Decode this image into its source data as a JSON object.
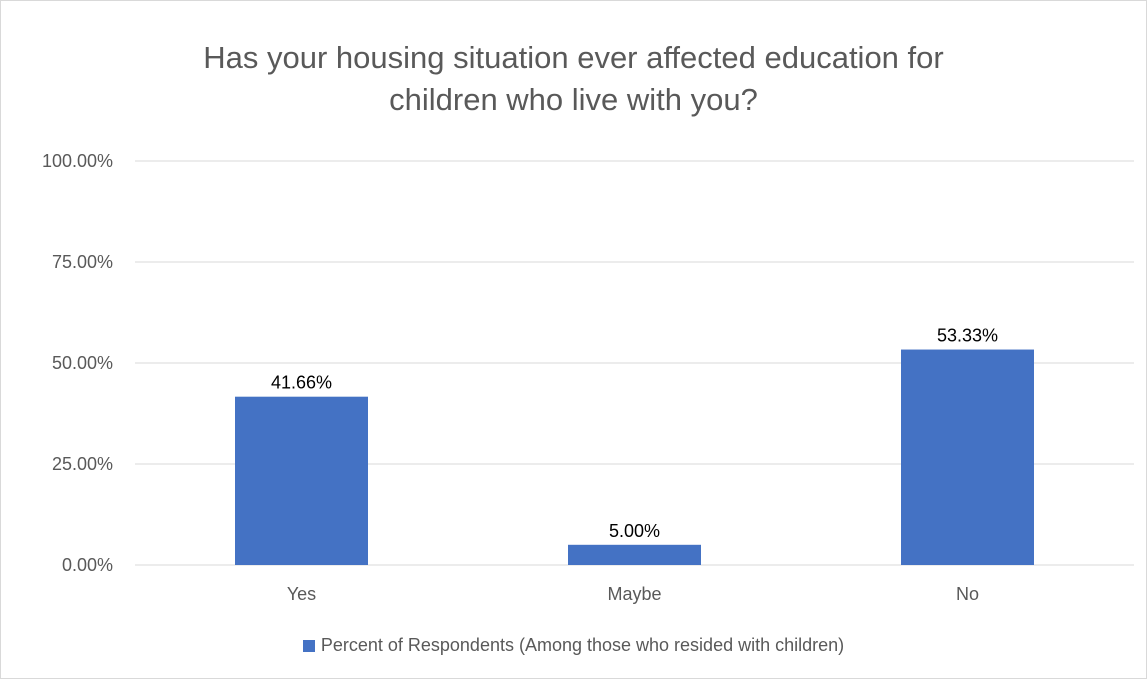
{
  "chart_data": {
    "type": "bar",
    "title_lines": [
      "Has your housing situation ever affected education for",
      "children who live with you?"
    ],
    "categories": [
      "Yes",
      "Maybe",
      "No"
    ],
    "series": [
      {
        "name": "Percent of Respondents (Among those who resided with children)",
        "values": [
          41.66,
          5.0,
          53.33
        ],
        "labels": [
          "41.66%",
          "5.00%",
          "53.33%"
        ],
        "color": "#4472c4"
      }
    ],
    "ylim": [
      0,
      100
    ],
    "yticks": [
      0,
      25,
      50,
      75,
      100
    ],
    "ytick_labels": [
      "0.00%",
      "25.00%",
      "50.00%",
      "75.00%",
      "100.00%"
    ],
    "grid": true,
    "legend_position": "bottom"
  }
}
